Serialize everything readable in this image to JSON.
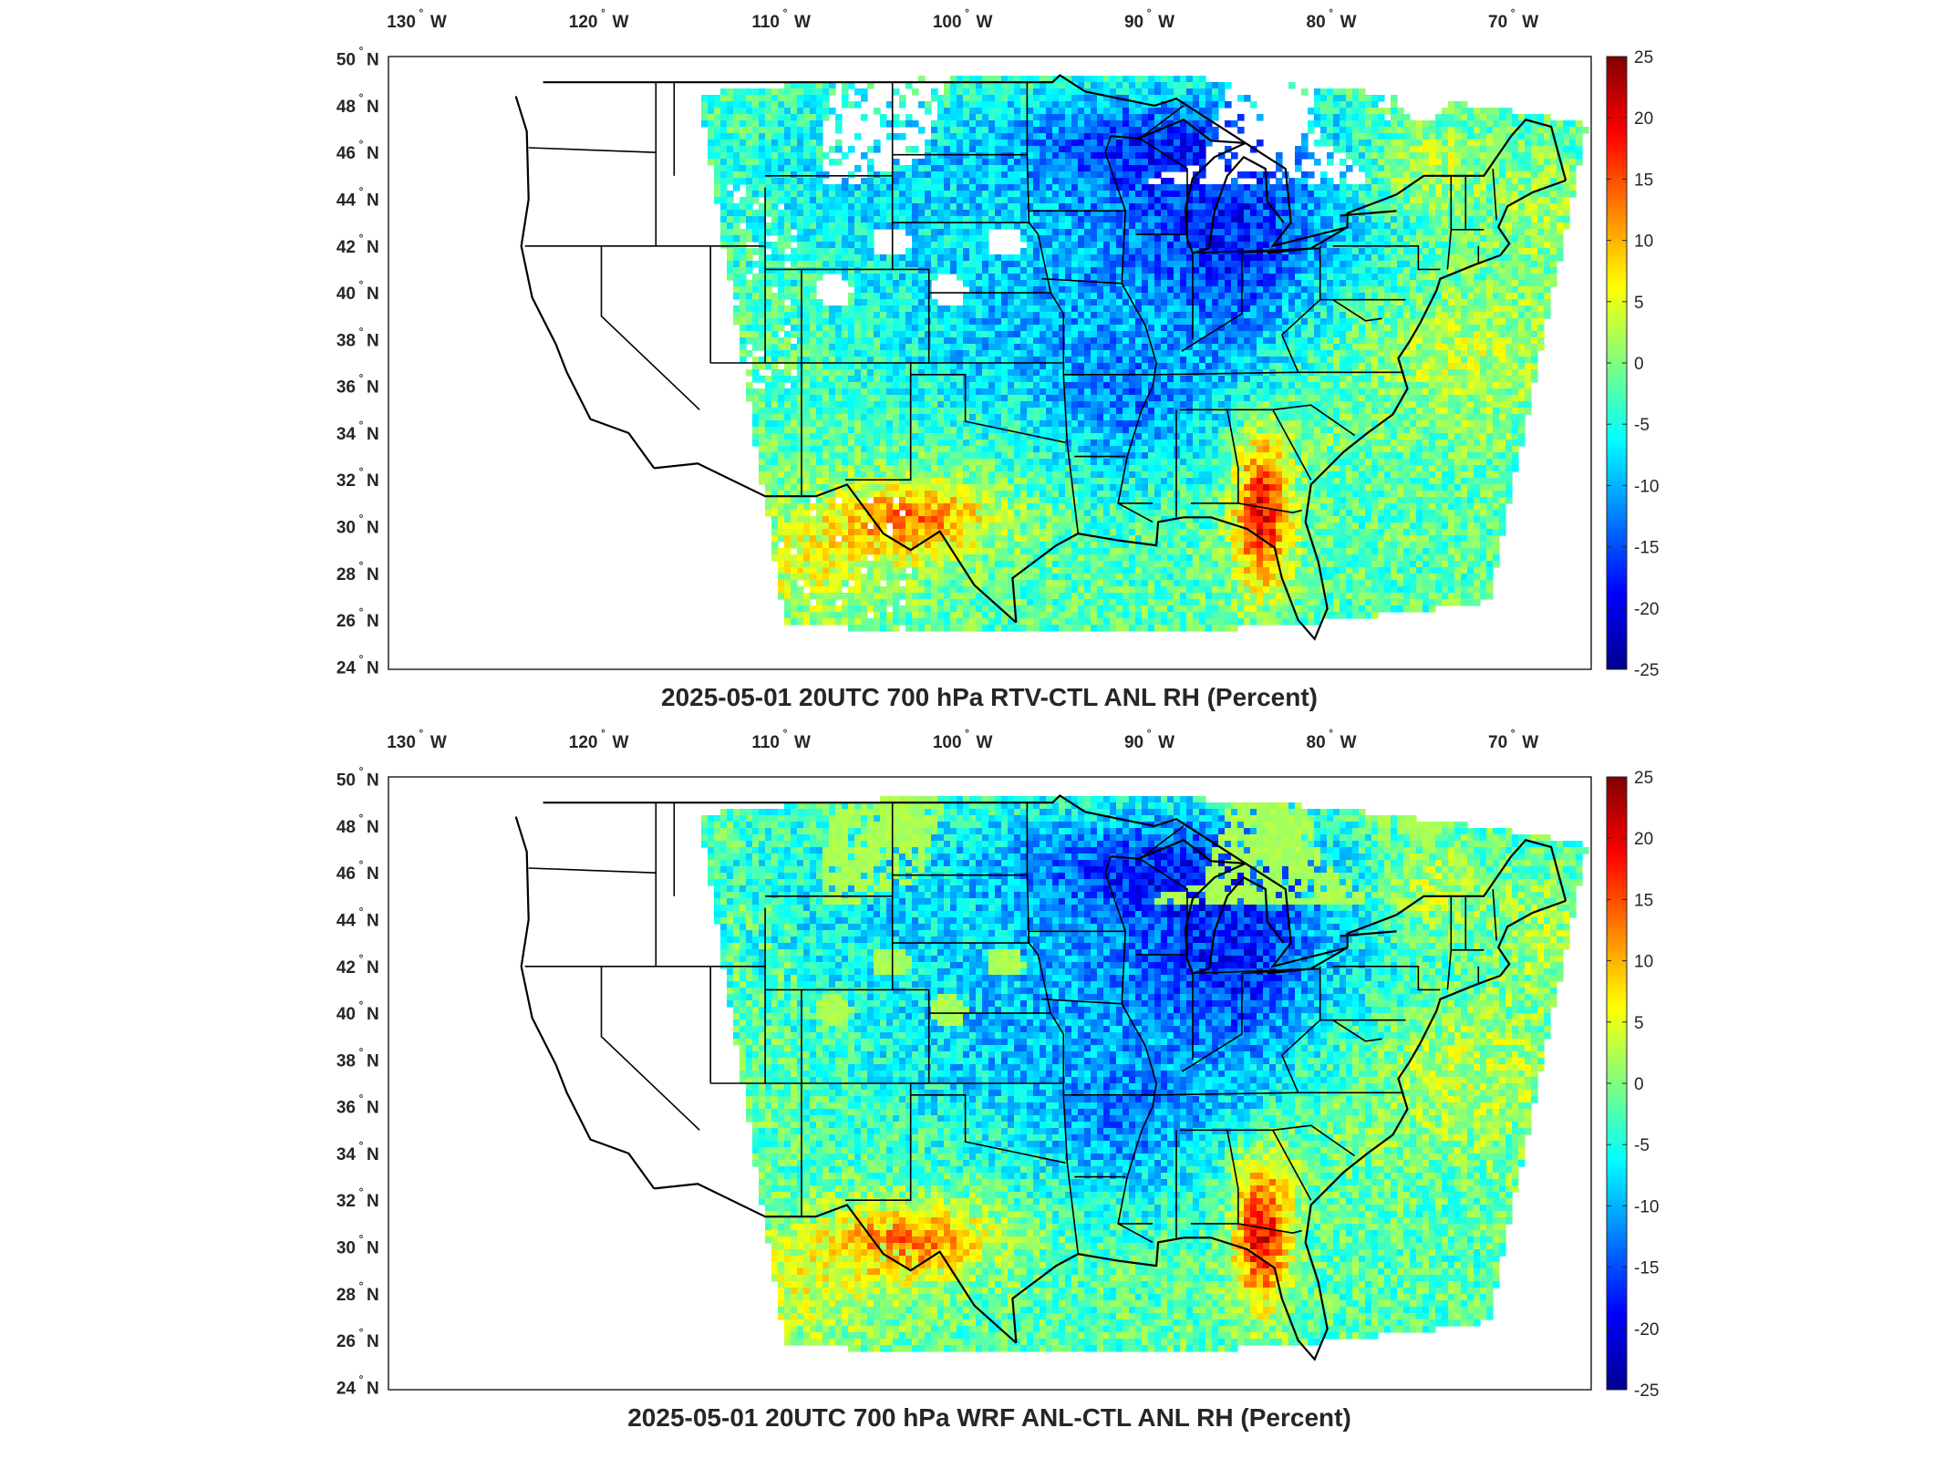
{
  "panels": [
    {
      "title": "2025-05-01 20UTC 700 hPa RTV-CTL ANL RH (Percent)",
      "variant": "rtv"
    },
    {
      "title": "2025-05-01 20UTC 700 hPa WRF ANL-CTL ANL RH (Percent)",
      "variant": "wrf"
    }
  ],
  "map": {
    "lon_ticks": [
      {
        "value": -130,
        "num": "130",
        "hem": "W"
      },
      {
        "value": -120,
        "num": "120",
        "hem": "W"
      },
      {
        "value": -110,
        "num": "110",
        "hem": "W"
      },
      {
        "value": -100,
        "num": "100",
        "hem": "W"
      },
      {
        "value": -90,
        "num": "90",
        "hem": "W"
      },
      {
        "value": -80,
        "num": "80",
        "hem": "W"
      },
      {
        "value": -70,
        "num": "70",
        "hem": "W"
      }
    ],
    "lat_ticks": [
      {
        "value": 50,
        "num": "50",
        "hem": "N"
      },
      {
        "value": 48,
        "num": "48",
        "hem": "N"
      },
      {
        "value": 46,
        "num": "46",
        "hem": "N"
      },
      {
        "value": 44,
        "num": "44",
        "hem": "N"
      },
      {
        "value": 42,
        "num": "42",
        "hem": "N"
      },
      {
        "value": 40,
        "num": "40",
        "hem": "N"
      },
      {
        "value": 38,
        "num": "38",
        "hem": "N"
      },
      {
        "value": 36,
        "num": "36",
        "hem": "N"
      },
      {
        "value": 34,
        "num": "34",
        "hem": "N"
      },
      {
        "value": 32,
        "num": "32",
        "hem": "N"
      },
      {
        "value": 30,
        "num": "30",
        "hem": "N"
      },
      {
        "value": 28,
        "num": "28",
        "hem": "N"
      },
      {
        "value": 26,
        "num": "26",
        "hem": "N"
      },
      {
        "value": 24,
        "num": "24",
        "hem": "N"
      }
    ],
    "degree_symbol": "°"
  },
  "colorbar": {
    "ticks": [
      "25",
      "20",
      "15",
      "10",
      "5",
      "0",
      "-5",
      "-10",
      "-15",
      "-20",
      "-25"
    ],
    "range": [
      -25,
      25
    ],
    "colormap": "jet",
    "colors": [
      "#00008f",
      "#0000ff",
      "#0080ff",
      "#00ffff",
      "#80ff80",
      "#ffff00",
      "#ff8000",
      "#ff0000",
      "#800000"
    ]
  }
}
